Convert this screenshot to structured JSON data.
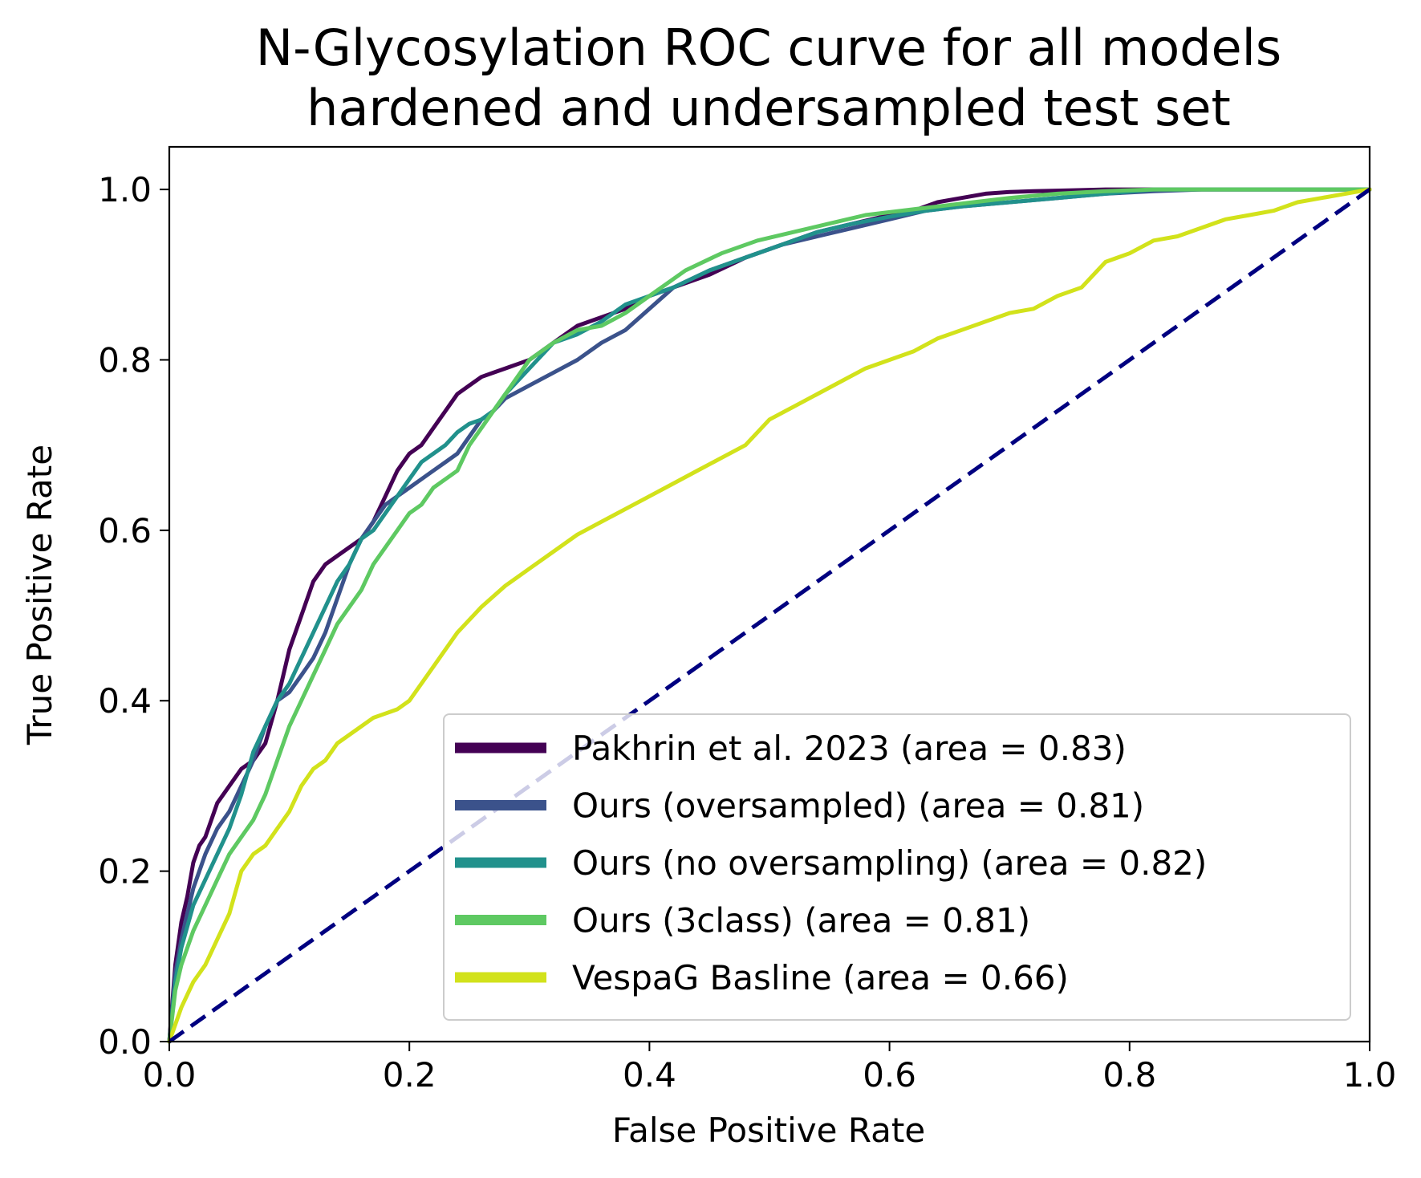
{
  "chart_data": {
    "type": "line",
    "title": "N-Glycosylation ROC curve for all models\nhardened and undersampled test set",
    "title_lines": [
      "N-Glycosylation ROC curve for all models",
      "hardened and undersampled test set"
    ],
    "xlabel": "False Positive Rate",
    "ylabel": "True Positive Rate",
    "xlim": [
      0.0,
      1.0
    ],
    "ylim": [
      0.0,
      1.05
    ],
    "xticks": [
      "0.0",
      "0.2",
      "0.4",
      "0.6",
      "0.8",
      "1.0"
    ],
    "yticks": [
      "0.0",
      "0.2",
      "0.4",
      "0.6",
      "0.8",
      "1.0"
    ],
    "grid": false,
    "legend_position": "lower-right",
    "series": [
      {
        "name": "Pakhrin et al. 2023 (area = 0.83)",
        "color": "#440154",
        "x": [
          0.0,
          0.005,
          0.01,
          0.015,
          0.02,
          0.025,
          0.03,
          0.04,
          0.05,
          0.06,
          0.07,
          0.08,
          0.09,
          0.1,
          0.11,
          0.12,
          0.13,
          0.14,
          0.15,
          0.16,
          0.17,
          0.18,
          0.19,
          0.2,
          0.21,
          0.22,
          0.23,
          0.24,
          0.25,
          0.26,
          0.27,
          0.28,
          0.29,
          0.3,
          0.32,
          0.34,
          0.36,
          0.38,
          0.4,
          0.42,
          0.45,
          0.48,
          0.51,
          0.54,
          0.57,
          0.6,
          0.62,
          0.64,
          0.66,
          0.68,
          0.7,
          0.72,
          0.75,
          0.78,
          0.82,
          0.86,
          0.9,
          1.0
        ],
        "y": [
          0.0,
          0.09,
          0.14,
          0.17,
          0.21,
          0.23,
          0.24,
          0.28,
          0.3,
          0.32,
          0.33,
          0.35,
          0.4,
          0.46,
          0.5,
          0.54,
          0.56,
          0.57,
          0.58,
          0.59,
          0.61,
          0.64,
          0.67,
          0.69,
          0.7,
          0.72,
          0.74,
          0.76,
          0.77,
          0.78,
          0.785,
          0.79,
          0.795,
          0.8,
          0.82,
          0.84,
          0.85,
          0.86,
          0.875,
          0.885,
          0.9,
          0.92,
          0.935,
          0.95,
          0.96,
          0.97,
          0.975,
          0.985,
          0.99,
          0.995,
          0.997,
          0.998,
          0.999,
          1.0,
          1.0,
          1.0,
          1.0,
          1.0
        ]
      },
      {
        "name": "Ours (oversampled) (area = 0.81)",
        "color": "#3b528b",
        "x": [
          0.0,
          0.005,
          0.01,
          0.02,
          0.03,
          0.04,
          0.05,
          0.06,
          0.07,
          0.08,
          0.09,
          0.1,
          0.11,
          0.12,
          0.13,
          0.14,
          0.15,
          0.16,
          0.17,
          0.18,
          0.19,
          0.2,
          0.21,
          0.22,
          0.23,
          0.24,
          0.25,
          0.26,
          0.27,
          0.28,
          0.3,
          0.32,
          0.34,
          0.36,
          0.38,
          0.4,
          0.42,
          0.45,
          0.48,
          0.51,
          0.54,
          0.57,
          0.6,
          0.63,
          0.66,
          0.7,
          0.74,
          0.78,
          0.82,
          0.86,
          1.0
        ],
        "y": [
          0.0,
          0.08,
          0.12,
          0.18,
          0.22,
          0.25,
          0.27,
          0.3,
          0.33,
          0.37,
          0.4,
          0.41,
          0.43,
          0.45,
          0.48,
          0.52,
          0.56,
          0.59,
          0.61,
          0.63,
          0.64,
          0.65,
          0.66,
          0.67,
          0.68,
          0.69,
          0.71,
          0.73,
          0.74,
          0.755,
          0.77,
          0.785,
          0.8,
          0.82,
          0.835,
          0.86,
          0.885,
          0.905,
          0.92,
          0.935,
          0.945,
          0.955,
          0.965,
          0.975,
          0.98,
          0.985,
          0.99,
          0.995,
          0.998,
          1.0,
          1.0
        ]
      },
      {
        "name": "Ours (no oversampling) (area = 0.82)",
        "color": "#21918c",
        "x": [
          0.0,
          0.005,
          0.01,
          0.02,
          0.03,
          0.04,
          0.05,
          0.06,
          0.07,
          0.08,
          0.09,
          0.1,
          0.11,
          0.12,
          0.13,
          0.14,
          0.15,
          0.16,
          0.17,
          0.18,
          0.19,
          0.2,
          0.21,
          0.22,
          0.23,
          0.24,
          0.25,
          0.26,
          0.27,
          0.28,
          0.3,
          0.32,
          0.34,
          0.36,
          0.38,
          0.4,
          0.42,
          0.45,
          0.48,
          0.51,
          0.54,
          0.57,
          0.6,
          0.63,
          0.66,
          0.7,
          0.74,
          0.78,
          0.82,
          0.86,
          1.0
        ],
        "y": [
          0.0,
          0.07,
          0.11,
          0.16,
          0.19,
          0.22,
          0.25,
          0.29,
          0.34,
          0.37,
          0.4,
          0.42,
          0.45,
          0.48,
          0.51,
          0.54,
          0.56,
          0.59,
          0.6,
          0.62,
          0.64,
          0.66,
          0.68,
          0.69,
          0.7,
          0.715,
          0.725,
          0.73,
          0.74,
          0.76,
          0.79,
          0.82,
          0.83,
          0.845,
          0.865,
          0.875,
          0.885,
          0.905,
          0.92,
          0.935,
          0.95,
          0.96,
          0.968,
          0.975,
          0.98,
          0.985,
          0.99,
          0.995,
          1.0,
          1.0,
          1.0
        ]
      },
      {
        "name": "Ours (3class) (area = 0.81)",
        "color": "#5ec962",
        "x": [
          0.0,
          0.005,
          0.01,
          0.02,
          0.03,
          0.04,
          0.05,
          0.06,
          0.07,
          0.08,
          0.09,
          0.1,
          0.11,
          0.12,
          0.13,
          0.14,
          0.15,
          0.16,
          0.17,
          0.18,
          0.19,
          0.2,
          0.21,
          0.22,
          0.23,
          0.24,
          0.25,
          0.26,
          0.27,
          0.28,
          0.3,
          0.32,
          0.34,
          0.36,
          0.38,
          0.4,
          0.43,
          0.46,
          0.49,
          0.52,
          0.55,
          0.58,
          0.61,
          0.64,
          0.67,
          0.7,
          0.74,
          0.78,
          0.82,
          1.0
        ],
        "y": [
          0.0,
          0.06,
          0.09,
          0.13,
          0.16,
          0.19,
          0.22,
          0.24,
          0.26,
          0.29,
          0.33,
          0.37,
          0.4,
          0.43,
          0.46,
          0.49,
          0.51,
          0.53,
          0.56,
          0.58,
          0.6,
          0.62,
          0.63,
          0.65,
          0.66,
          0.67,
          0.7,
          0.72,
          0.74,
          0.76,
          0.8,
          0.82,
          0.835,
          0.84,
          0.855,
          0.875,
          0.905,
          0.925,
          0.94,
          0.95,
          0.96,
          0.97,
          0.975,
          0.98,
          0.985,
          0.99,
          0.995,
          0.998,
          1.0,
          1.0
        ]
      },
      {
        "name": "VespaG Basline (area = 0.66)",
        "color": "#d2e21b",
        "x": [
          0.0,
          0.01,
          0.02,
          0.03,
          0.04,
          0.05,
          0.06,
          0.07,
          0.08,
          0.09,
          0.1,
          0.11,
          0.12,
          0.13,
          0.14,
          0.15,
          0.16,
          0.17,
          0.18,
          0.19,
          0.2,
          0.22,
          0.24,
          0.26,
          0.28,
          0.3,
          0.32,
          0.34,
          0.36,
          0.38,
          0.4,
          0.42,
          0.44,
          0.46,
          0.48,
          0.5,
          0.52,
          0.54,
          0.56,
          0.58,
          0.6,
          0.62,
          0.64,
          0.66,
          0.68,
          0.7,
          0.72,
          0.74,
          0.76,
          0.78,
          0.8,
          0.82,
          0.84,
          0.86,
          0.88,
          0.9,
          0.92,
          0.94,
          0.96,
          1.0
        ],
        "y": [
          0.0,
          0.04,
          0.07,
          0.09,
          0.12,
          0.15,
          0.2,
          0.22,
          0.23,
          0.25,
          0.27,
          0.3,
          0.32,
          0.33,
          0.35,
          0.36,
          0.37,
          0.38,
          0.385,
          0.39,
          0.4,
          0.44,
          0.48,
          0.51,
          0.535,
          0.555,
          0.575,
          0.595,
          0.61,
          0.625,
          0.64,
          0.655,
          0.67,
          0.685,
          0.7,
          0.73,
          0.745,
          0.76,
          0.775,
          0.79,
          0.8,
          0.81,
          0.825,
          0.835,
          0.845,
          0.855,
          0.86,
          0.875,
          0.885,
          0.915,
          0.925,
          0.94,
          0.945,
          0.955,
          0.965,
          0.97,
          0.975,
          0.985,
          0.99,
          1.0
        ]
      }
    ],
    "reference_line": {
      "x": [
        0.0,
        1.0
      ],
      "y": [
        0.0,
        1.0
      ],
      "color": "#000080",
      "style": "dashed"
    }
  }
}
